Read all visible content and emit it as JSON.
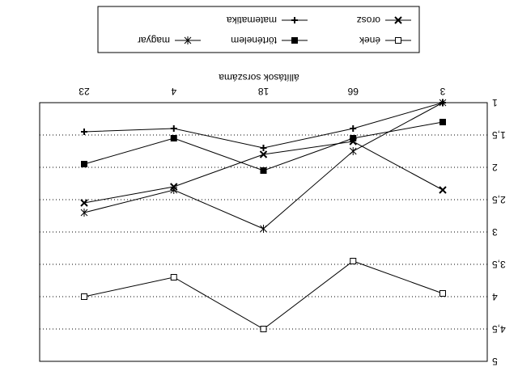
{
  "chart_data": {
    "type": "line",
    "xlabel": "állítások sorszáma",
    "categories": [
      "3",
      "66",
      "18",
      "4",
      "23"
    ],
    "y_tick_labels": [
      "1",
      "1,5",
      "2",
      "2,5",
      "3",
      "3,5",
      "4",
      "4,5",
      "5"
    ],
    "y_ticks": [
      1,
      1.5,
      2,
      2.5,
      3,
      3.5,
      4,
      4.5,
      5
    ],
    "ylim": [
      1,
      5
    ],
    "y_inverted": true,
    "grid": "horizontal dotted",
    "legend_placement": "top",
    "image_rotation": "180deg",
    "series": [
      {
        "name": "ének",
        "marker": "open-square",
        "values": [
          3.95,
          3.45,
          4.5,
          3.7,
          4.0
        ]
      },
      {
        "name": "orosz",
        "marker": "x",
        "values": [
          2.35,
          1.6,
          1.8,
          2.3,
          2.55
        ]
      },
      {
        "name": "történelem",
        "marker": "filled-square",
        "values": [
          1.3,
          1.55,
          2.05,
          1.55,
          1.95
        ]
      },
      {
        "name": "matematika",
        "marker": "plus",
        "values": [
          1.0,
          1.4,
          1.7,
          1.4,
          1.45
        ]
      },
      {
        "name": "magyar",
        "marker": "star",
        "values": [
          1.0,
          1.75,
          2.95,
          2.35,
          2.7
        ]
      }
    ]
  }
}
